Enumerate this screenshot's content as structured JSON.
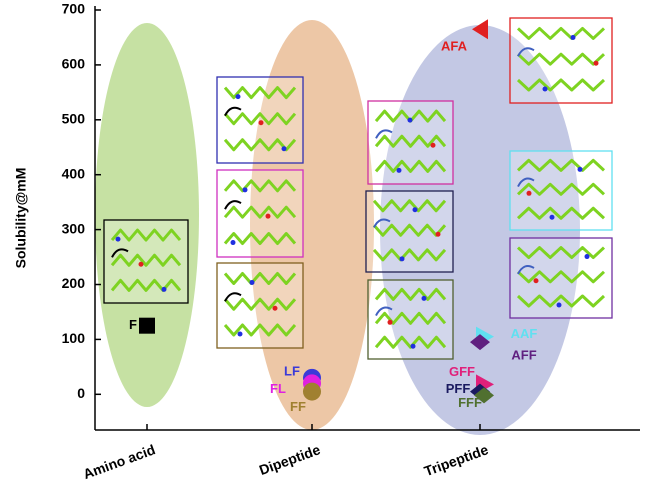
{
  "chart_data": {
    "type": "scatter",
    "y_label": "Solubility@mM",
    "categories": [
      "Amino acid",
      "Dipeptide",
      "Tripeptide"
    ],
    "ylim": [
      -65,
      700
    ],
    "yticks": [
      0,
      100,
      200,
      300,
      400,
      500,
      600,
      700
    ],
    "series": [
      {
        "name": "F",
        "color": "#000000",
        "marker": "square",
        "values": [
          125,
          null,
          null
        ]
      },
      {
        "name": "LF",
        "color": "#3a3ad8",
        "marker": "circle",
        "values": [
          null,
          30,
          null
        ]
      },
      {
        "name": "FL",
        "color": "#e020e0",
        "marker": "circle",
        "values": [
          null,
          20,
          null
        ]
      },
      {
        "name": "FF",
        "color": "#a08030",
        "marker": "circle",
        "values": [
          null,
          5,
          null
        ]
      },
      {
        "name": "AFA",
        "color": "#e02020",
        "marker": "triangle-left",
        "values": [
          null,
          null,
          665
        ]
      },
      {
        "name": "AAF",
        "color": "#60e0f0",
        "marker": "triangle-right",
        "values": [
          null,
          null,
          105
        ]
      },
      {
        "name": "AFF",
        "color": "#602080",
        "marker": "diamond",
        "values": [
          null,
          null,
          95
        ]
      },
      {
        "name": "GFF",
        "color": "#e0207a",
        "marker": "triangle-right",
        "values": [
          null,
          null,
          18
        ]
      },
      {
        "name": "PFF",
        "color": "#1a1a60",
        "marker": "diamond",
        "values": [
          null,
          null,
          5
        ]
      },
      {
        "name": "FFF",
        "color": "#507030",
        "marker": "diamond",
        "values": [
          null,
          null,
          -2
        ]
      }
    ]
  }
}
